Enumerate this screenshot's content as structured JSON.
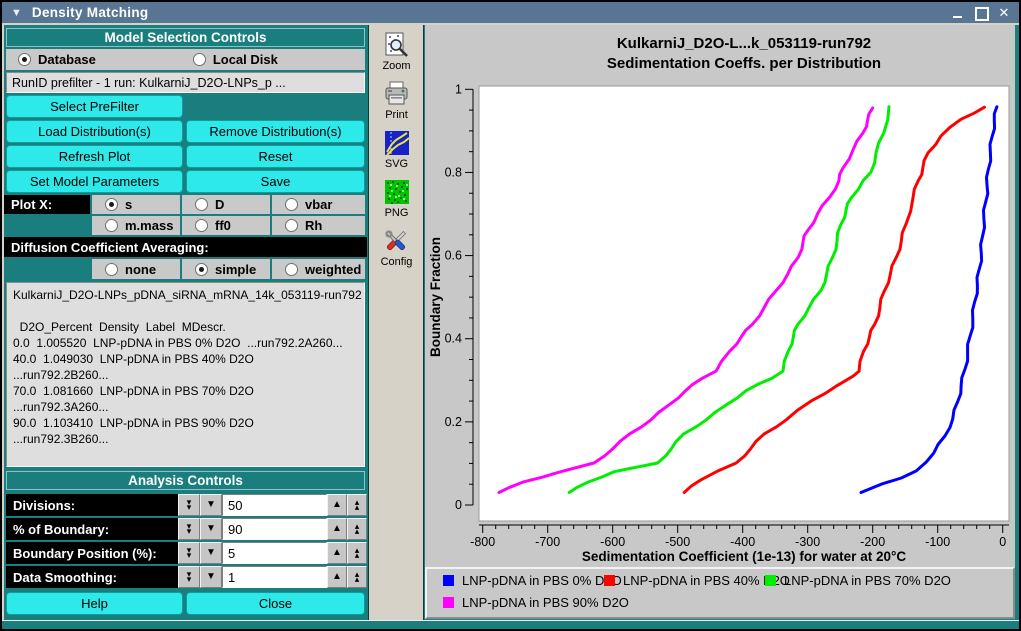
{
  "window": {
    "title": "Density Matching"
  },
  "model_controls": {
    "banner": "Model Selection Controls",
    "source_options": [
      {
        "label": "Database",
        "selected": true
      },
      {
        "label": "Local Disk",
        "selected": false
      }
    ],
    "prefilter_text": "RunID prefilter - 1 run: KulkarniJ_D2O-LNPs_p ...",
    "buttons": {
      "select_prefilter": "Select PreFilter",
      "load": "Load Distribution(s)",
      "remove": "Remove Distribution(s)",
      "refresh": "Refresh Plot",
      "reset": "Reset",
      "set_params": "Set Model Parameters",
      "save": "Save"
    },
    "plot_x_label": "Plot X:",
    "plot_x_options": [
      {
        "label": "s",
        "selected": true
      },
      {
        "label": "D",
        "selected": false
      },
      {
        "label": "vbar",
        "selected": false
      },
      {
        "label": "m.mass",
        "selected": false
      },
      {
        "label": "ff0",
        "selected": false
      },
      {
        "label": "Rh",
        "selected": false
      }
    ],
    "diffusion_label": "Diffusion Coefficient Averaging:",
    "diffusion_options": [
      {
        "label": "none",
        "selected": false
      },
      {
        "label": "simple",
        "selected": true
      },
      {
        "label": "weighted",
        "selected": false
      }
    ],
    "textarea_lines": [
      "KulkarniJ_D2O-LNPs_pDNA_siRNA_mRNA_14k_053119-run792",
      "",
      "  D2O_Percent  Density  Label  MDescr.",
      "0.0  1.005520  LNP-pDNA in PBS 0% D2O  ...run792.2A260...",
      "40.0  1.049030  LNP-pDNA in PBS 40% D2O",
      "...run792.2B260...",
      "70.0  1.081660  LNP-pDNA in PBS 70% D2O",
      "...run792.3A260...",
      "90.0  1.103410  LNP-pDNA in PBS 90% D2O",
      "...run792.3B260..."
    ]
  },
  "analysis_controls": {
    "banner": "Analysis Controls",
    "counters": [
      {
        "label": "Divisions:",
        "value": "50"
      },
      {
        "label": "% of Boundary:",
        "value": "90"
      },
      {
        "label": "Boundary Position (%):",
        "value": "5"
      },
      {
        "label": "Data Smoothing:",
        "value": "1"
      }
    ],
    "help_label": "Help",
    "close_label": "Close"
  },
  "toolbar_icons": [
    {
      "name": "zoom-icon",
      "label": "Zoom"
    },
    {
      "name": "print-icon",
      "label": "Print"
    },
    {
      "name": "svg-icon",
      "label": "SVG"
    },
    {
      "name": "png-icon",
      "label": "PNG"
    },
    {
      "name": "config-icon",
      "label": "Config"
    }
  ],
  "chart_data": {
    "type": "line",
    "title_line1": "KulkarniJ_D2O-L...k_053119-run792",
    "title_line2": "Sedimentation Coeffs. per Distribution",
    "xlabel": "Sedimentation Coefficient (1e-13) for water at 20°C",
    "ylabel": "Boundary Fraction",
    "xlim": [
      -806,
      10
    ],
    "ylim": [
      0,
      1
    ],
    "x_major_step": 100,
    "x_minor_step": 20,
    "y_major_step": 0.2,
    "y_minor_step": 0.05,
    "x_major_ticks": [
      -800,
      -700,
      -600,
      -500,
      -400,
      -300,
      -200,
      -100,
      0
    ],
    "y_major_ticks": [
      0,
      0.2,
      0.4,
      0.6,
      0.8,
      1
    ],
    "grid": false,
    "legend_position": "bottom",
    "legend_rows": [
      [
        0,
        1,
        2
      ],
      [
        3
      ]
    ],
    "series": [
      {
        "name": "LNP-pDNA in PBS 0% D2O",
        "color": "#0000ff",
        "points": [
          [
            -218,
            0.03
          ],
          [
            -187,
            0.05
          ],
          [
            -156,
            0.065
          ],
          [
            -133,
            0.082
          ],
          [
            -106,
            0.125
          ],
          [
            -89,
            0.166
          ],
          [
            -77,
            0.207
          ],
          [
            -69,
            0.25
          ],
          [
            -64,
            0.286
          ],
          [
            -58,
            0.327
          ],
          [
            -54,
            0.366
          ],
          [
            -50,
            0.407
          ],
          [
            -46,
            0.447
          ],
          [
            -43,
            0.49
          ],
          [
            -39,
            0.527
          ],
          [
            -36,
            0.568
          ],
          [
            -33,
            0.606
          ],
          [
            -31,
            0.647
          ],
          [
            -29,
            0.688
          ],
          [
            -26,
            0.73
          ],
          [
            -24,
            0.767
          ],
          [
            -22,
            0.808
          ],
          [
            -19,
            0.847
          ],
          [
            -16,
            0.888
          ],
          [
            -13,
            0.924
          ],
          [
            -9,
            0.958
          ]
        ]
      },
      {
        "name": "LNP-pDNA in PBS 40% D2O",
        "color": "#ff0000",
        "points": [
          [
            -490,
            0.03
          ],
          [
            -465,
            0.06
          ],
          [
            -438,
            0.082
          ],
          [
            -410,
            0.101
          ],
          [
            -388,
            0.135
          ],
          [
            -367,
            0.171
          ],
          [
            -333,
            0.205
          ],
          [
            -295,
            0.25
          ],
          [
            -256,
            0.286
          ],
          [
            -230,
            0.31
          ],
          [
            -221,
            0.322
          ],
          [
            -214,
            0.37
          ],
          [
            -205,
            0.405
          ],
          [
            -197,
            0.435
          ],
          [
            -189,
            0.475
          ],
          [
            -182,
            0.515
          ],
          [
            -173,
            0.555
          ],
          [
            -164,
            0.595
          ],
          [
            -156,
            0.635
          ],
          [
            -149,
            0.675
          ],
          [
            -138,
            0.739
          ],
          [
            -130,
            0.78
          ],
          [
            -123,
            0.81
          ],
          [
            -115,
            0.847
          ],
          [
            -95,
            0.888
          ],
          [
            -64,
            0.928
          ],
          [
            -28,
            0.957
          ]
        ]
      },
      {
        "name": "LNP-pDNA in PBS 70% D2O",
        "color": "#00ee00",
        "points": [
          [
            -667,
            0.03
          ],
          [
            -638,
            0.055
          ],
          [
            -598,
            0.08
          ],
          [
            -531,
            0.101
          ],
          [
            -510,
            0.135
          ],
          [
            -491,
            0.171
          ],
          [
            -456,
            0.205
          ],
          [
            -426,
            0.24
          ],
          [
            -395,
            0.275
          ],
          [
            -355,
            0.305
          ],
          [
            -338,
            0.322
          ],
          [
            -330,
            0.37
          ],
          [
            -322,
            0.405
          ],
          [
            -315,
            0.435
          ],
          [
            -298,
            0.475
          ],
          [
            -280,
            0.515
          ],
          [
            -271,
            0.555
          ],
          [
            -262,
            0.595
          ],
          [
            -255,
            0.635
          ],
          [
            -249,
            0.675
          ],
          [
            -241,
            0.71
          ],
          [
            -233,
            0.739
          ],
          [
            -215,
            0.78
          ],
          [
            -203,
            0.8
          ],
          [
            -195,
            0.847
          ],
          [
            -183,
            0.895
          ],
          [
            -175,
            0.958
          ]
        ]
      },
      {
        "name": "LNP-pDNA in PBS 90% D2O",
        "color": "#ff00ff",
        "points": [
          [
            -775,
            0.03
          ],
          [
            -738,
            0.055
          ],
          [
            -680,
            0.08
          ],
          [
            -629,
            0.101
          ],
          [
            -600,
            0.135
          ],
          [
            -574,
            0.171
          ],
          [
            -541,
            0.205
          ],
          [
            -514,
            0.24
          ],
          [
            -488,
            0.275
          ],
          [
            -462,
            0.305
          ],
          [
            -441,
            0.322
          ],
          [
            -420,
            0.37
          ],
          [
            -402,
            0.405
          ],
          [
            -385,
            0.435
          ],
          [
            -367,
            0.475
          ],
          [
            -349,
            0.515
          ],
          [
            -331,
            0.555
          ],
          [
            -315,
            0.595
          ],
          [
            -307,
            0.635
          ],
          [
            -300,
            0.66
          ],
          [
            -285,
            0.7
          ],
          [
            -267,
            0.739
          ],
          [
            -252,
            0.78
          ],
          [
            -246,
            0.81
          ],
          [
            -230,
            0.855
          ],
          [
            -215,
            0.895
          ],
          [
            -208,
            0.925
          ],
          [
            -200,
            0.955
          ]
        ]
      }
    ]
  }
}
